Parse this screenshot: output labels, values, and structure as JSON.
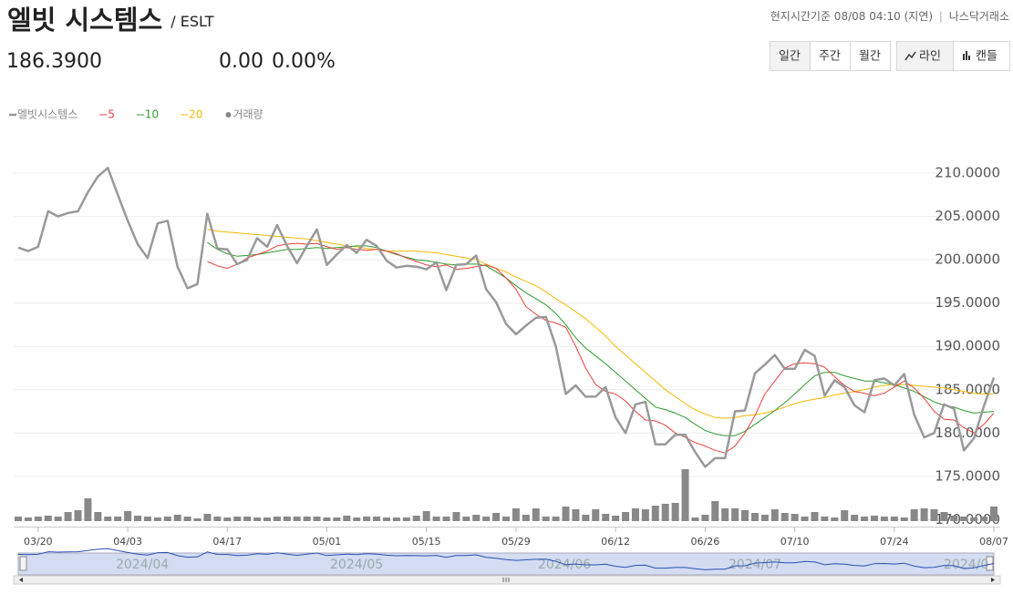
{
  "header": {
    "title": "엘빗 시스템스",
    "ticker": "/ ESLT",
    "price": "186.3900",
    "change": "0.00",
    "change_pct": "0.00%",
    "time_note": "현지시간기준 08/08 04:10 (지연)",
    "separator": "|",
    "exchange": "나스닥거래소"
  },
  "buttons": {
    "period": [
      "일간",
      "주간",
      "월간"
    ],
    "style": [
      "라인",
      "캔들"
    ]
  },
  "chart_data": {
    "type": "line",
    "categories": [
      null,
      null,
      "03/20",
      null,
      null,
      null,
      null,
      null,
      null,
      null,
      null,
      "04/03",
      null,
      null,
      null,
      null,
      null,
      null,
      null,
      null,
      null,
      "04/17",
      null,
      null,
      null,
      null,
      null,
      null,
      null,
      null,
      null,
      "05/01",
      null,
      null,
      null,
      null,
      null,
      null,
      null,
      null,
      null,
      "05/15",
      null,
      null,
      null,
      null,
      null,
      null,
      null,
      null,
      "05/29",
      null,
      null,
      null,
      null,
      null,
      null,
      null,
      null,
      null,
      "06/12",
      null,
      null,
      null,
      null,
      null,
      null,
      null,
      null,
      "06/26",
      null,
      null,
      null,
      null,
      null,
      null,
      null,
      null,
      "07/10",
      null,
      null,
      null,
      null,
      null,
      null,
      null,
      null,
      null,
      "07/24",
      null,
      null,
      null,
      null,
      null,
      null,
      null,
      null,
      null,
      "08/07"
    ],
    "series": [
      {
        "name": "엘빗시스템스",
        "color": "#999999",
        "line_width": 2.5,
        "values": [
          201.4,
          201.0,
          201.5,
          205.6,
          205.0,
          205.4,
          205.6,
          207.8,
          209.6,
          210.6,
          207.5,
          204.5,
          201.8,
          200.2,
          204.2,
          204.5,
          199.2,
          196.7,
          197.2,
          205.3,
          201.3,
          201.2,
          199.5,
          200.0,
          202.5,
          201.5,
          204.0,
          201.6,
          199.6,
          201.6,
          203.5,
          199.4,
          200.6,
          201.7,
          200.8,
          202.3,
          201.6,
          199.9,
          199.1,
          199.3,
          199.2,
          198.9,
          199.7,
          196.5,
          199.4,
          199.5,
          200.5,
          196.6,
          195.1,
          192.6,
          191.4,
          192.4,
          193.3,
          193.4,
          190.0,
          184.5,
          185.5,
          184.2,
          184.2,
          185.3,
          181.8,
          180.0,
          183.3,
          183.6,
          178.7,
          178.7,
          179.8,
          179.8,
          177.8,
          176.1,
          177.1,
          177.1,
          182.5,
          182.6,
          186.9,
          187.9,
          189.0,
          187.4,
          187.4,
          189.6,
          188.9,
          184.3,
          186.1,
          185.3,
          183.2,
          182.4,
          186.1,
          186.3,
          185.5,
          186.8,
          182.1,
          179.5,
          180.0,
          183.3,
          182.8,
          178.0,
          179.4,
          183.1,
          186.39
        ]
      },
      {
        "name": "5",
        "color": "#e8403a",
        "line_width": 1,
        "values": [
          null,
          null,
          null,
          null,
          null,
          null,
          null,
          null,
          null,
          null,
          null,
          null,
          null,
          null,
          null,
          null,
          null,
          null,
          null,
          199.8,
          199.3,
          199.0,
          199.5,
          200.2,
          200.6,
          201.0,
          201.6,
          201.8,
          201.9,
          201.8,
          201.9,
          201.5,
          201.2,
          201.4,
          201.2,
          201.1,
          201.2,
          201.0,
          200.7,
          200.2,
          199.8,
          199.4,
          199.2,
          199.4,
          198.9,
          199.0,
          199.2,
          199.4,
          199.0,
          197.9,
          196.6,
          194.6,
          193.7,
          193.0,
          192.7,
          192.2,
          190.0,
          187.5,
          185.6,
          184.8,
          184.5,
          183.7,
          182.5,
          181.5,
          181.4,
          180.9,
          180.0,
          179.5,
          178.9,
          178.5,
          178.0,
          177.7,
          178.5,
          180.0,
          182.0,
          184.5,
          186.0,
          187.5,
          188.0,
          188.1,
          188.0,
          187.6,
          186.5,
          185.5,
          184.8,
          184.6,
          184.3,
          184.6,
          185.3,
          186.0,
          185.2,
          184.0,
          182.5,
          181.6,
          181.5,
          180.6,
          180.0,
          181.0,
          182.3
        ]
      },
      {
        "name": "10",
        "color": "#2e9a2e",
        "line_width": 1,
        "values": [
          null,
          null,
          null,
          null,
          null,
          null,
          null,
          null,
          null,
          null,
          null,
          null,
          null,
          null,
          null,
          null,
          null,
          null,
          null,
          202.0,
          201.2,
          200.7,
          200.4,
          200.5,
          200.6,
          200.8,
          201.0,
          201.2,
          201.2,
          201.3,
          201.4,
          201.3,
          201.4,
          201.5,
          201.6,
          201.6,
          201.4,
          201.0,
          200.6,
          200.3,
          200.0,
          199.9,
          199.7,
          199.5,
          199.4,
          199.5,
          199.5,
          199.3,
          198.6,
          197.9,
          197.0,
          196.2,
          195.5,
          194.8,
          193.8,
          192.5,
          191.0,
          189.8,
          188.9,
          188.0,
          187.0,
          186.0,
          185.0,
          184.0,
          183.0,
          182.7,
          182.3,
          181.8,
          181.0,
          180.3,
          179.9,
          179.7,
          179.7,
          180.2,
          181.0,
          181.8,
          182.6,
          183.5,
          184.5,
          185.6,
          186.6,
          187.0,
          187.0,
          186.6,
          186.3,
          186.0,
          186.0,
          185.8,
          185.6,
          185.2,
          184.8,
          184.2,
          183.6,
          183.2,
          183.0,
          182.6,
          182.3,
          182.4,
          182.5
        ]
      },
      {
        "name": "20",
        "color": "#f5b800",
        "line_width": 1,
        "values": [
          null,
          null,
          null,
          null,
          null,
          null,
          null,
          null,
          null,
          null,
          null,
          null,
          null,
          null,
          null,
          null,
          null,
          null,
          null,
          203.5,
          203.3,
          203.2,
          203.1,
          203.0,
          202.9,
          202.8,
          202.7,
          202.6,
          202.5,
          202.4,
          202.2,
          202.0,
          201.8,
          201.6,
          201.5,
          201.3,
          201.2,
          201.0,
          201.0,
          201.0,
          201.0,
          200.9,
          200.8,
          200.6,
          200.4,
          200.2,
          200.0,
          199.5,
          199.0,
          198.6,
          198.0,
          197.5,
          197.0,
          196.3,
          195.5,
          194.8,
          194.0,
          193.2,
          192.2,
          191.2,
          190.0,
          189.0,
          188.0,
          187.0,
          186.0,
          185.0,
          184.2,
          183.4,
          182.7,
          182.2,
          181.8,
          181.7,
          181.8,
          182.0,
          182.1,
          182.3,
          182.6,
          183.0,
          183.4,
          183.7,
          183.9,
          184.1,
          184.4,
          184.6,
          184.8,
          185.0,
          185.3,
          185.5,
          185.6,
          185.6,
          185.5,
          185.4,
          185.3,
          185.2,
          185.0,
          184.8,
          184.6,
          184.5,
          184.5
        ]
      },
      {
        "name": "거래량",
        "type": "bar",
        "color": "#888888",
        "values": [
          5,
          4,
          5,
          6,
          5,
          10,
          12,
          25,
          10,
          5,
          5,
          11,
          6,
          5,
          4,
          5,
          7,
          5,
          3,
          8,
          5,
          4,
          5,
          5,
          4,
          4,
          5,
          5,
          5,
          5,
          5,
          4,
          4,
          6,
          4,
          5,
          5,
          4,
          4,
          4,
          6,
          11,
          5,
          5,
          10,
          5,
          7,
          5,
          9,
          5,
          14,
          7,
          14,
          5,
          5,
          16,
          13,
          7,
          13,
          8,
          6,
          10,
          14,
          13,
          17,
          19,
          20,
          57,
          4,
          7,
          22,
          14,
          14,
          12,
          9,
          7,
          13,
          9,
          8,
          5,
          10,
          5,
          4,
          12,
          7,
          5,
          6,
          5,
          5,
          4,
          13,
          14,
          13,
          10,
          6,
          5,
          4,
          5,
          16
        ]
      }
    ],
    "ylim": [
      169.2,
      214.0
    ],
    "yticks": [
      {
        "value": 170,
        "label": "170.0000"
      },
      {
        "value": 175,
        "label": "175.0000"
      },
      {
        "value": 180,
        "label": "180.0000"
      },
      {
        "value": 185,
        "label": "185.0000"
      },
      {
        "value": 190,
        "label": "190.0000"
      },
      {
        "value": 195,
        "label": "195.0000"
      },
      {
        "value": 200,
        "label": "200.0000"
      },
      {
        "value": 205,
        "label": "205.0000"
      },
      {
        "value": 210,
        "label": "210.0000"
      }
    ],
    "volume_ylim": [
      0,
      60
    ],
    "grid": true,
    "navigator_labels": [
      "2024/04",
      "2024/05",
      "2024/06",
      "2024/07",
      "2024/0"
    ]
  }
}
